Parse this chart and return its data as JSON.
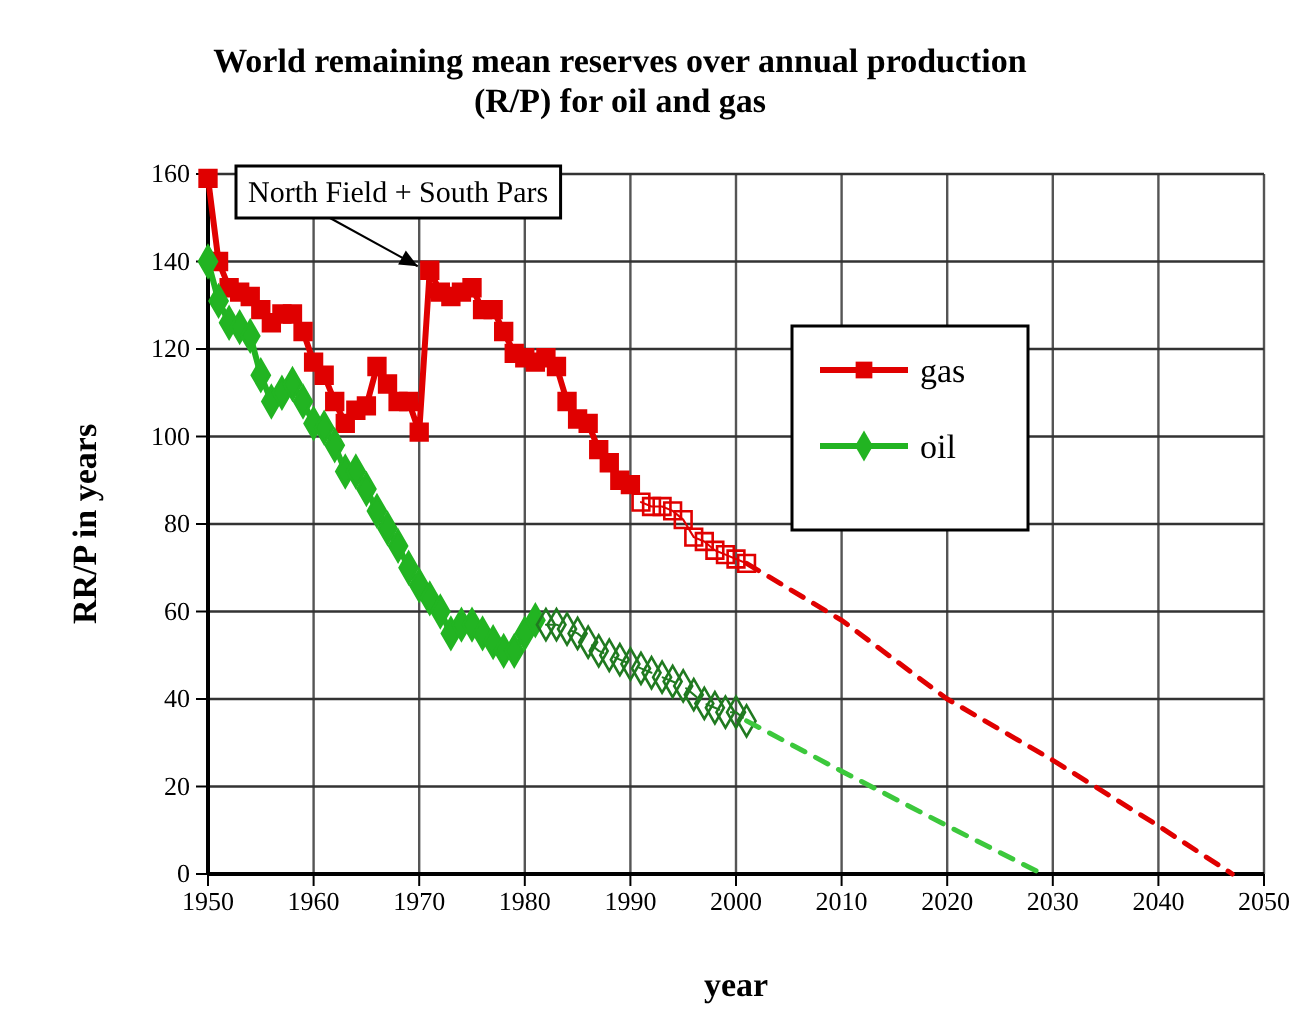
{
  "chart_data": {
    "type": "line",
    "title": "World remaining mean reserves over annual production (R/P) for oil and gas",
    "xlabel": "year",
    "ylabel": "RR/P in years",
    "xlim": [
      1950,
      2050
    ],
    "xticks": [
      1950,
      1960,
      1970,
      1980,
      1990,
      2000,
      2010,
      2020,
      2030,
      2040,
      2050
    ],
    "ylim": [
      0,
      160
    ],
    "yticks": [
      0,
      20,
      40,
      60,
      80,
      100,
      120,
      140,
      160
    ],
    "grid": true,
    "legend": "top right",
    "annotations": [
      {
        "text": "North Field + South Pars",
        "x": 1971,
        "y": 138
      }
    ],
    "series": [
      {
        "name": "gas",
        "color": "#e00000",
        "marker": "square",
        "line_style": "solid",
        "x": [
          1950,
          1951,
          1952,
          1953,
          1954,
          1955,
          1956,
          1957,
          1958,
          1959,
          1960,
          1961,
          1962,
          1963,
          1964,
          1965,
          1966,
          1967,
          1968,
          1969,
          1970,
          1971,
          1972,
          1973,
          1974,
          1975,
          1976,
          1977,
          1978,
          1979,
          1980,
          1981,
          1982,
          1983,
          1984,
          1985,
          1986,
          1987,
          1988,
          1989,
          1990
        ],
        "values": [
          159,
          140,
          134,
          133,
          132,
          129,
          126,
          128,
          128,
          124,
          117,
          114,
          108,
          103,
          106,
          107,
          116,
          112,
          108,
          108,
          101,
          138,
          133,
          132,
          133,
          134,
          129,
          129,
          124,
          119,
          118,
          117,
          118,
          116,
          108,
          104,
          103,
          97,
          94,
          90,
          89
        ]
      },
      {
        "color": "#e00000",
        "marker": "square",
        "line_style": "solid",
        "x": [
          1991,
          1992,
          1993,
          1994,
          1995,
          1996,
          1997,
          1998,
          1999,
          2000,
          2001
        ],
        "values": [
          85,
          84,
          84,
          83,
          81,
          77,
          76,
          74,
          73,
          72,
          71
        ]
      },
      {
        "color": "#e00000",
        "marker": "none",
        "line_style": "dashed",
        "x": [
          2001,
          2010,
          2020,
          2030,
          2040,
          2047
        ],
        "values": [
          71,
          58,
          40,
          26,
          11,
          0
        ]
      },
      {
        "name": "oil",
        "color": "#22b422",
        "marker": "diamond",
        "line_style": "solid",
        "x": [
          1950,
          1951,
          1952,
          1953,
          1954,
          1955,
          1956,
          1957,
          1958,
          1959,
          1960,
          1961,
          1962,
          1963,
          1964,
          1965,
          1966,
          1967,
          1968,
          1969,
          1970,
          1971,
          1972,
          1973,
          1974,
          1975,
          1976,
          1977,
          1978,
          1979,
          1980,
          1981
        ],
        "values": [
          140,
          131,
          126,
          125,
          123,
          114,
          108,
          110,
          112,
          108,
          103,
          102,
          98,
          92,
          92,
          88,
          83,
          79,
          75,
          70,
          66,
          63,
          60,
          55,
          57,
          57,
          55,
          53,
          51,
          51,
          55,
          58
        ]
      },
      {
        "color": "#207a20",
        "marker": "diamond",
        "line_style": "dashed",
        "x": [
          1982,
          1983,
          1984,
          1985,
          1986,
          1987,
          1988,
          1989,
          1990,
          1991,
          1992,
          1993,
          1994,
          1995,
          1996,
          1997,
          1998,
          1999,
          2000,
          2001
        ],
        "values": [
          57,
          57,
          56,
          55,
          53,
          51,
          50,
          49,
          48,
          47,
          46,
          45,
          44,
          43,
          41,
          39,
          38,
          37,
          37,
          35
        ]
      },
      {
        "color": "#3cc83c",
        "marker": "none",
        "line_style": "dashed",
        "x": [
          2001,
          2010,
          2020,
          2029
        ],
        "values": [
          35,
          23.5,
          11,
          0
        ]
      }
    ]
  }
}
